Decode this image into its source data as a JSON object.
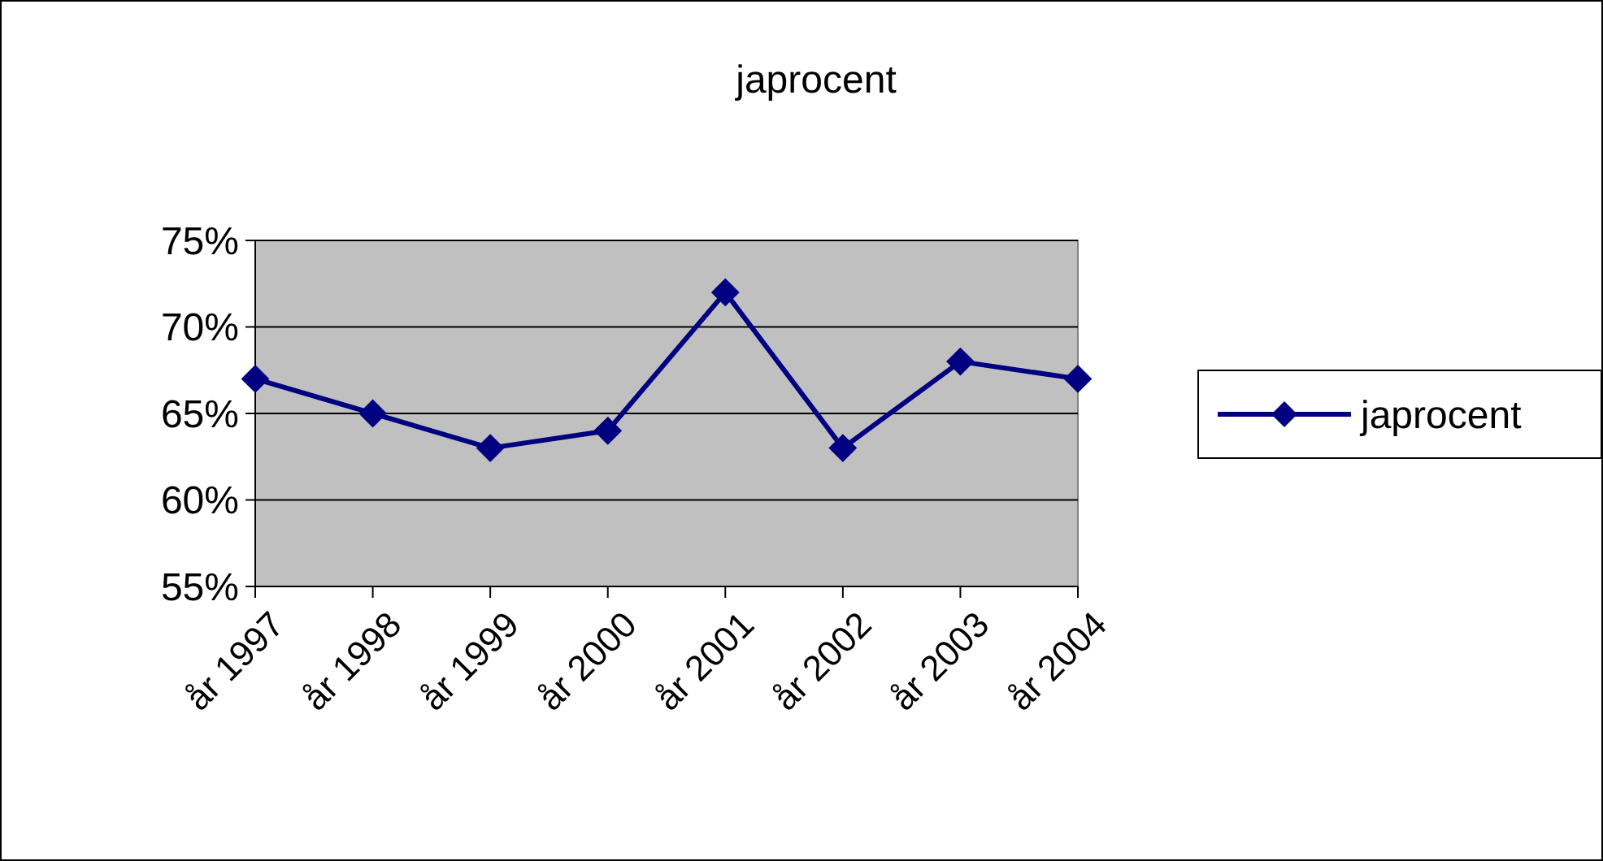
{
  "chart_data": {
    "type": "line",
    "title": "japrocent",
    "categories": [
      "år 1997",
      "år 1998",
      "år 1999",
      "år 2000",
      "år 2001",
      "år 2002",
      "år 2003",
      "år 2004"
    ],
    "series": [
      {
        "name": "japrocent",
        "color": "#000080",
        "values": [
          67,
          65,
          63,
          64,
          72,
          63,
          68,
          67
        ]
      }
    ],
    "ylim": [
      55,
      75
    ],
    "yticks": [
      {
        "value": 55,
        "label": "55%"
      },
      {
        "value": 60,
        "label": "60%"
      },
      {
        "value": 65,
        "label": "65%"
      },
      {
        "value": 70,
        "label": "70%"
      },
      {
        "value": 75,
        "label": "75%"
      }
    ],
    "grid": "y",
    "legend": "right",
    "marker": "diamond",
    "line_style": "solid"
  }
}
